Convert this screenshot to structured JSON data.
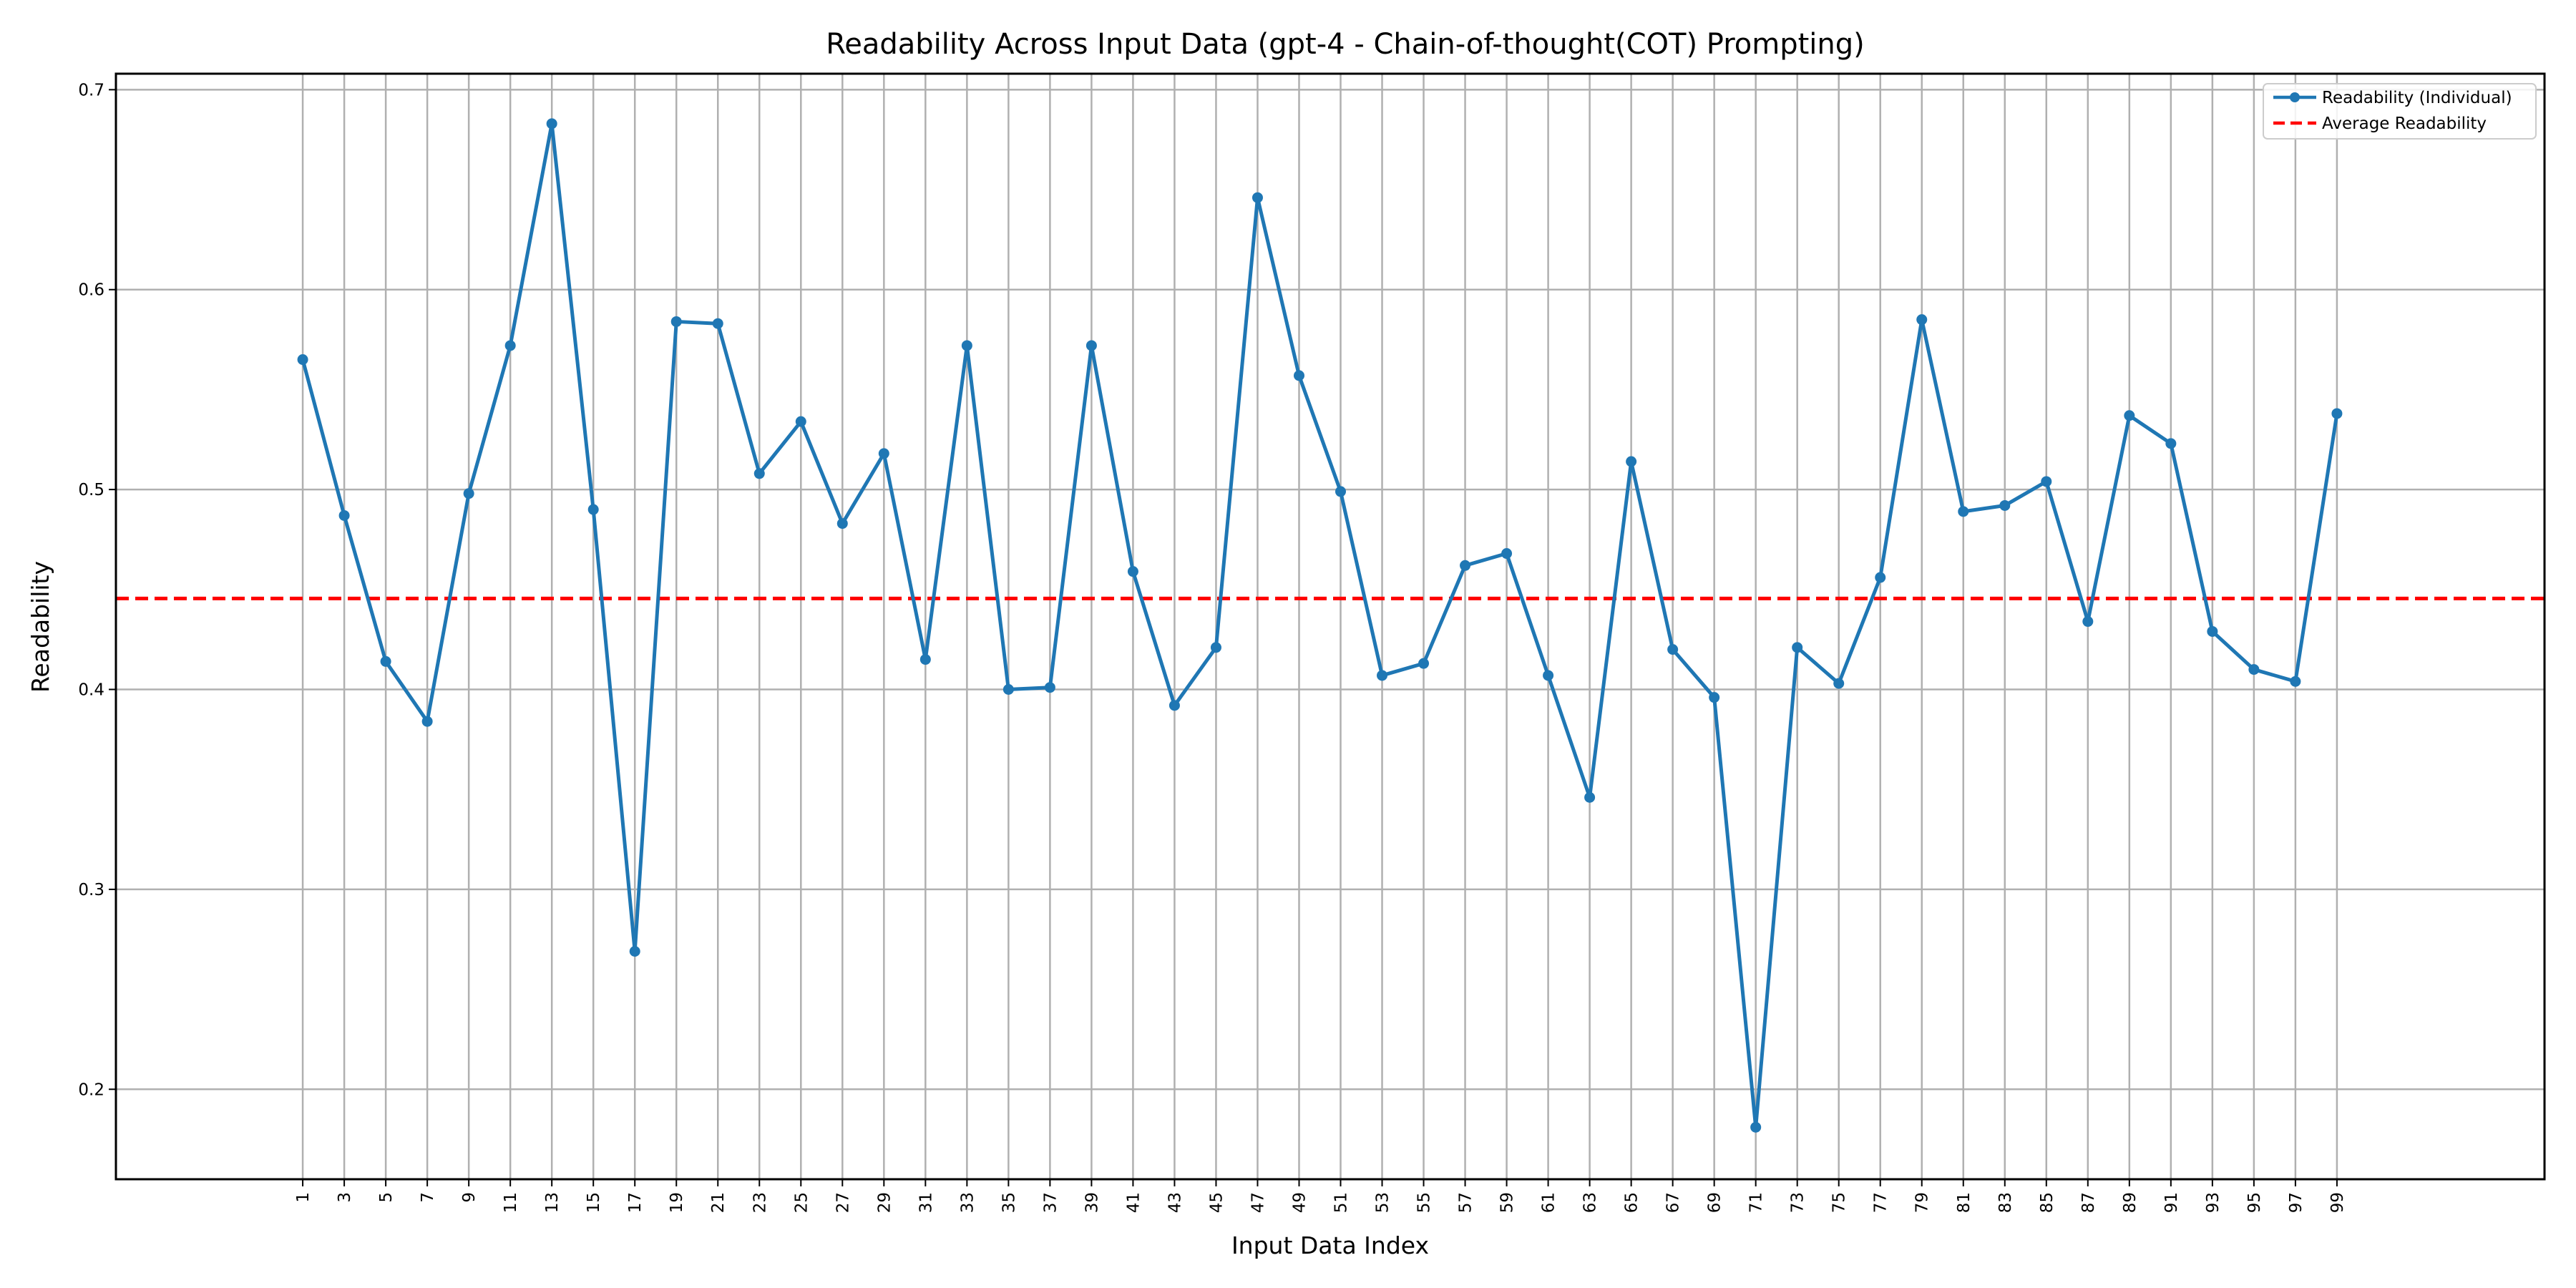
{
  "chart_data": {
    "type": "line",
    "title": "Readability Across Input Data (gpt-4 - Chain-of-thought(COT) Prompting)",
    "xlabel": "Input Data Index",
    "ylabel": "Readability",
    "x": [
      1,
      3,
      5,
      7,
      9,
      11,
      13,
      15,
      17,
      19,
      21,
      23,
      25,
      27,
      29,
      31,
      33,
      35,
      37,
      39,
      41,
      43,
      45,
      47,
      49,
      51,
      53,
      55,
      57,
      59,
      61,
      63,
      65,
      67,
      69,
      71,
      73,
      75,
      77,
      79,
      81,
      83,
      85,
      87,
      89,
      91,
      93,
      95,
      97,
      99
    ],
    "x_tick_labels": [
      "1",
      "3",
      "5",
      "7",
      "9",
      "11",
      "13",
      "15",
      "17",
      "19",
      "21",
      "23",
      "25",
      "27",
      "29",
      "31",
      "33",
      "35",
      "37",
      "39",
      "41",
      "43",
      "45",
      "47",
      "49",
      "51",
      "53",
      "55",
      "57",
      "59",
      "61",
      "63",
      "65",
      "67",
      "69",
      "71",
      "73",
      "75",
      "77",
      "79",
      "81",
      "83",
      "85",
      "87",
      "89",
      "91",
      "93",
      "95",
      "97",
      "99"
    ],
    "xlim": [
      -8,
      109
    ],
    "ylim": [
      0.155,
      0.708
    ],
    "y_ticks": [
      0.2,
      0.3,
      0.4,
      0.5,
      0.6,
      0.7
    ],
    "y_tick_labels": [
      "0.2",
      "0.3",
      "0.4",
      "0.5",
      "0.6",
      "0.7"
    ],
    "grid": true,
    "legend_position": "top-right",
    "series": [
      {
        "name": "Readability (Individual)",
        "color": "#1f77b4",
        "style": "solid-with-markers",
        "values": [
          0.565,
          0.487,
          0.414,
          0.384,
          0.498,
          0.572,
          0.683,
          0.49,
          0.269,
          0.584,
          0.583,
          0.508,
          0.534,
          0.483,
          0.518,
          0.415,
          0.572,
          0.4,
          0.401,
          0.572,
          0.459,
          0.392,
          0.421,
          0.646,
          0.557,
          0.499,
          0.407,
          0.413,
          0.462,
          0.468,
          0.407,
          0.346,
          0.514,
          0.42,
          0.396,
          0.181,
          0.421,
          0.403,
          0.456,
          0.585,
          0.489,
          0.492,
          0.504,
          0.434,
          0.537,
          0.523,
          0.429,
          0.41,
          0.404,
          0.538
        ]
      },
      {
        "name": "Average Readability",
        "color": "#ff0000",
        "style": "dashed",
        "value": 0.4455
      }
    ]
  }
}
